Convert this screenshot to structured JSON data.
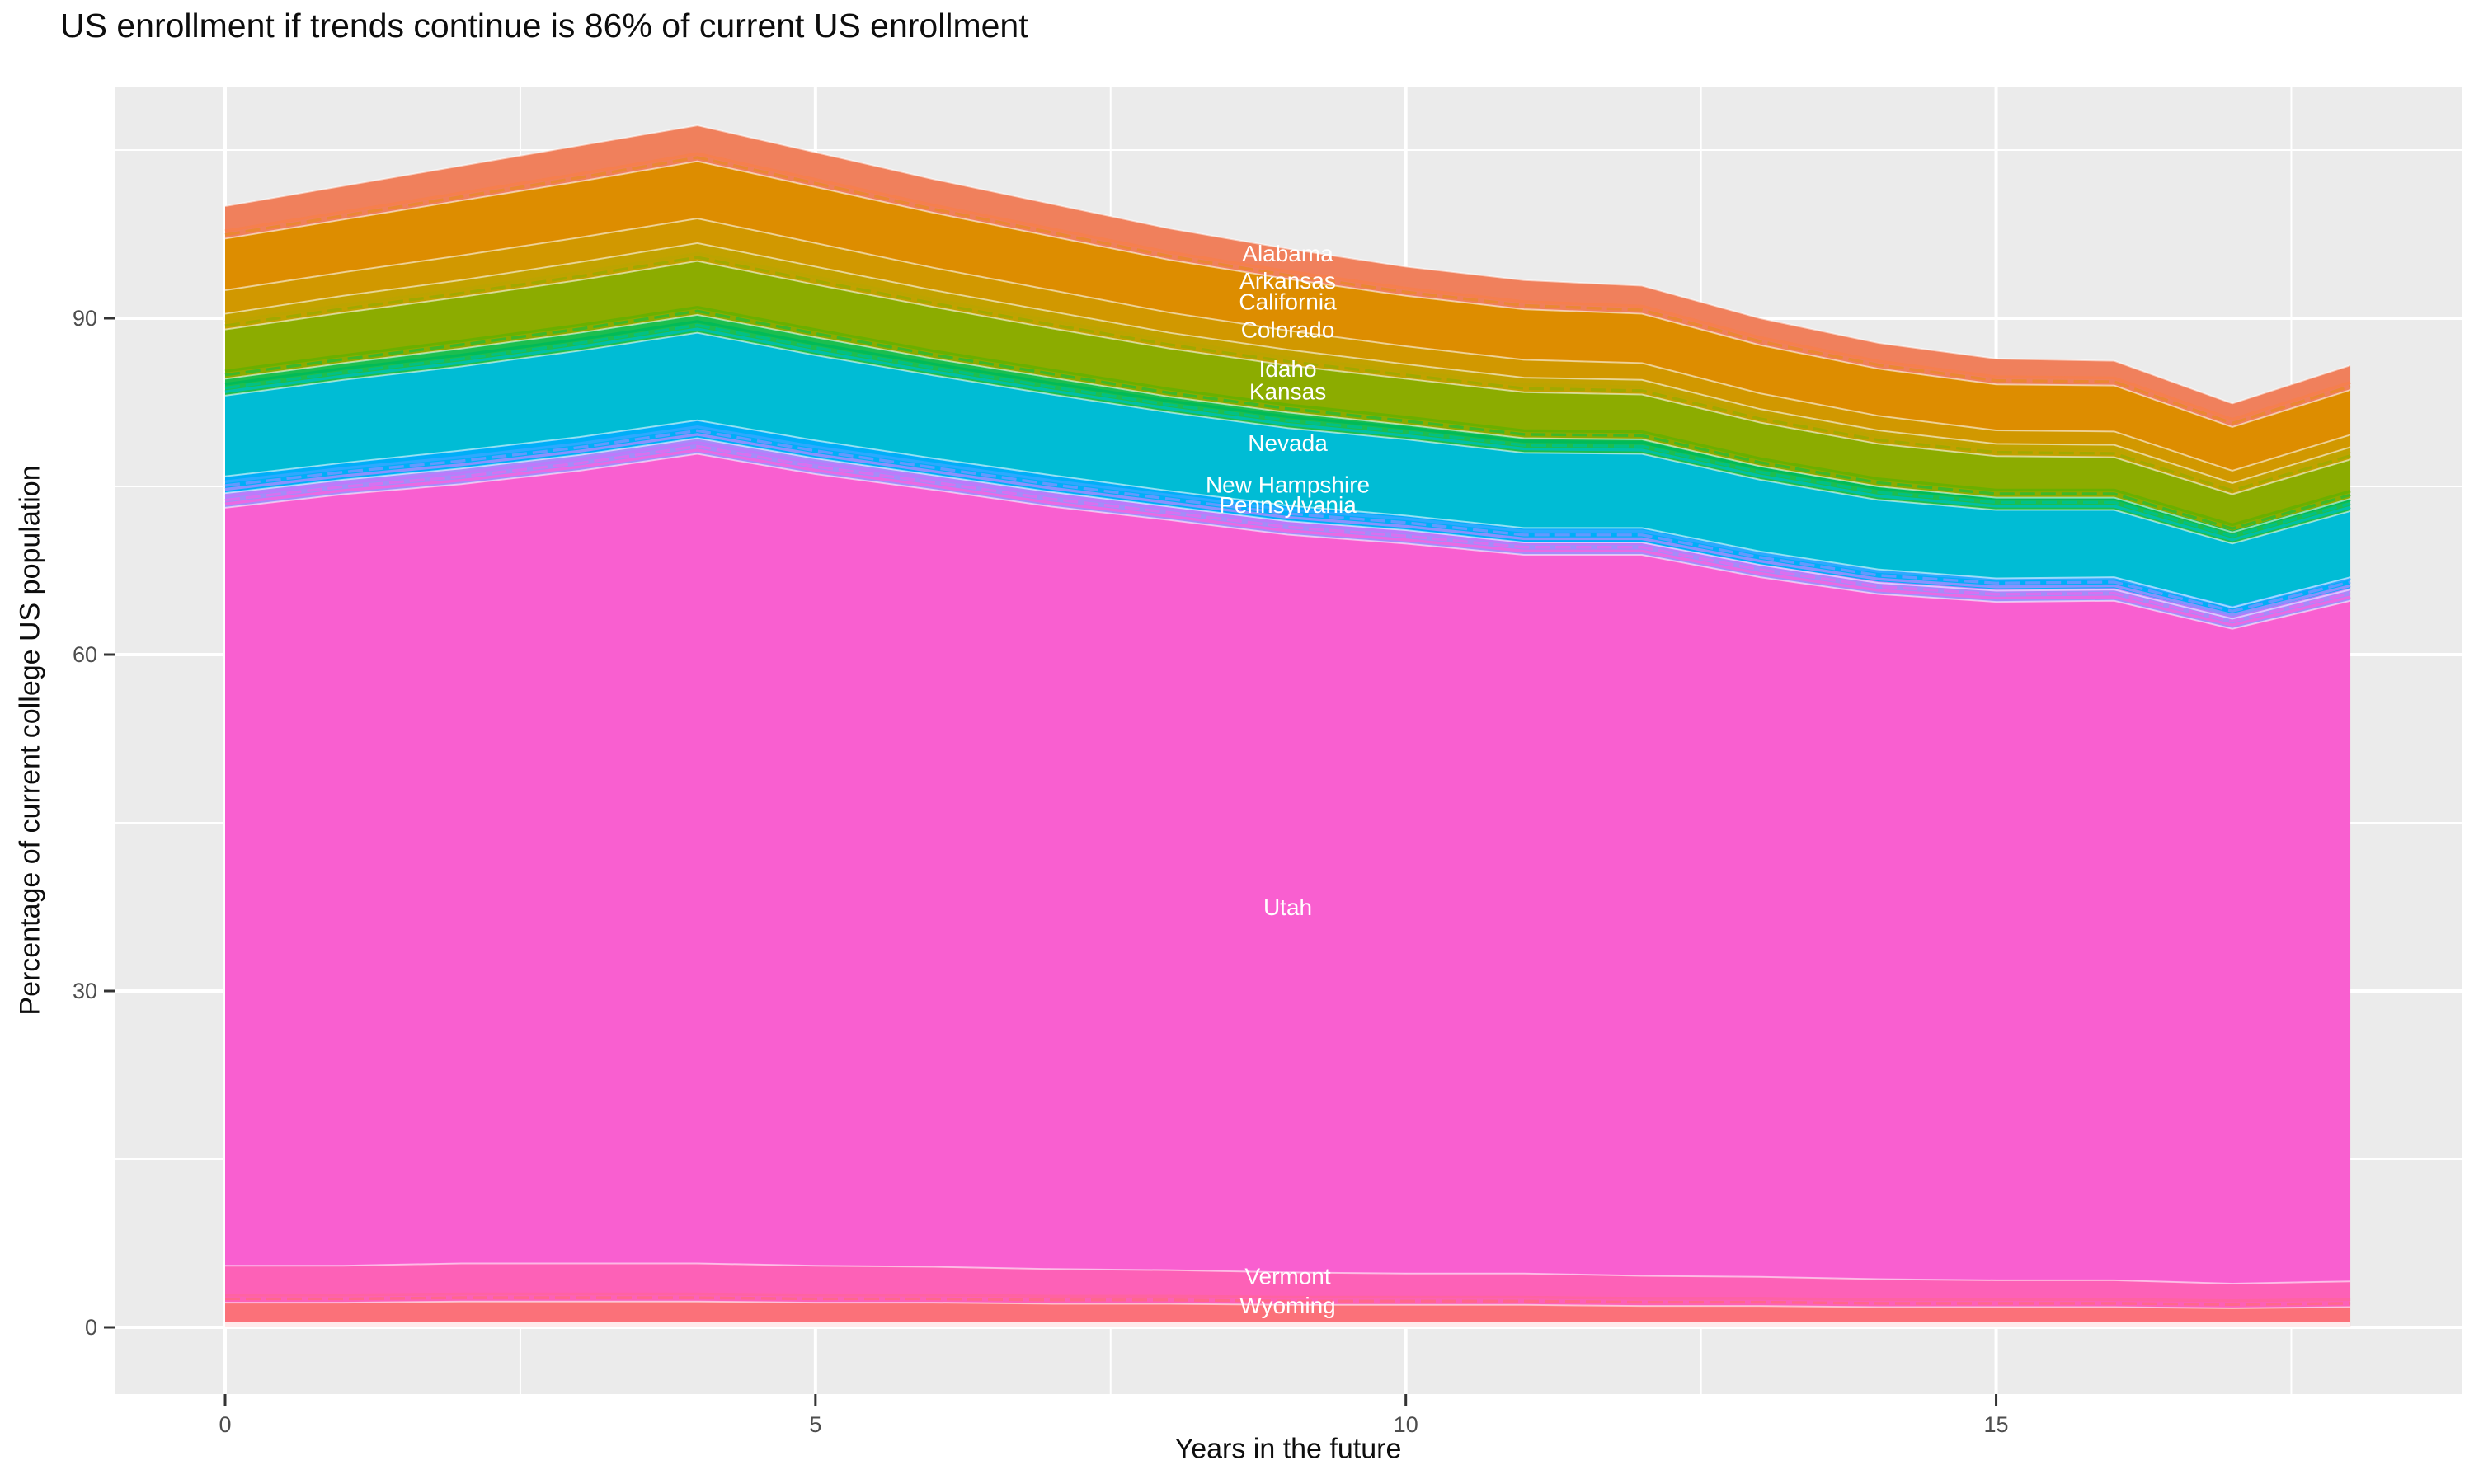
{
  "chart_data": {
    "type": "area",
    "title": "US enrollment if trends continue is 86% of current US enrollment",
    "xlabel": "Years in the future",
    "ylabel": "Percentage of current college US population",
    "panel_bg": "#EBEBEB",
    "grid_color": "#FFFFFF",
    "tick_label_color": "#4D4D4D",
    "tick_mark_color": "#333333",
    "area_label_color": "#FFFFFF",
    "legend": "none",
    "x": [
      0,
      1,
      2,
      3,
      4,
      5,
      6,
      7,
      8,
      9,
      10,
      11,
      12,
      13,
      14,
      15,
      16,
      17,
      18
    ],
    "x_ticks": [
      0,
      5,
      10,
      15
    ],
    "x_minor_ticks": [
      2.5,
      7.5,
      12.5,
      17.5
    ],
    "y_ticks": [
      0,
      30,
      60,
      90
    ],
    "y_minor_ticks": [
      15,
      45,
      75,
      105
    ],
    "xlim": [
      -0.93,
      18.94
    ],
    "ylim": [
      -5.96,
      110.66
    ],
    "series": [
      {
        "name": "Wyoming",
        "color": "#FB7179",
        "stripes_above": [
          "#FF639F",
          "#FF6788"
        ],
        "values": [
          2.2,
          2.2,
          2.3,
          2.3,
          2.3,
          2.2,
          2.2,
          2.1,
          2.1,
          2.0,
          2.0,
          2.0,
          1.9,
          1.9,
          1.8,
          1.8,
          1.8,
          1.7,
          1.8
        ]
      },
      {
        "name": "Vermont",
        "color": "#FD61B7",
        "stripes_above": [],
        "values": [
          3.3,
          3.3,
          3.4,
          3.4,
          3.4,
          3.3,
          3.2,
          3.1,
          3.0,
          2.9,
          2.8,
          2.8,
          2.7,
          2.6,
          2.5,
          2.4,
          2.4,
          2.2,
          2.3
        ]
      },
      {
        "name": "Utah",
        "color": "#F95FD0",
        "stripes_above": [
          "#BE79FB",
          "#DA70F0",
          "#ED68E3"
        ],
        "values": [
          67.6,
          68.8,
          69.5,
          70.7,
          72.2,
          70.6,
          69.3,
          68.0,
          66.9,
          65.8,
          65.1,
          64.1,
          64.3,
          62.4,
          61.1,
          60.5,
          60.6,
          58.4,
          60.7
        ]
      },
      {
        "name": "Pennsylvania",
        "color": "#A58CF9",
        "stripes_above": [
          "#2EA9FF",
          "#6699FF",
          "#9190FD"
        ],
        "values": [
          1.3,
          1.3,
          1.4,
          1.4,
          1.4,
          1.4,
          1.3,
          1.3,
          1.2,
          1.2,
          1.2,
          1.1,
          1.1,
          1.1,
          1.0,
          1.0,
          1.0,
          0.9,
          1.0
        ]
      },
      {
        "name": "New Hampshire",
        "color": "#00AEF8",
        "stripes_above": [],
        "values": [
          1.5,
          1.5,
          1.6,
          1.6,
          1.6,
          1.6,
          1.5,
          1.5,
          1.4,
          1.4,
          1.3,
          1.3,
          1.3,
          1.2,
          1.2,
          1.1,
          1.1,
          1.0,
          1.1
        ]
      },
      {
        "name": "Nevada",
        "color": "#00BCD5",
        "stripes_above": [
          "#00BB59",
          "#00C189",
          "#00C0AC"
        ],
        "values": [
          7.2,
          7.4,
          7.5,
          7.7,
          7.8,
          7.6,
          7.4,
          7.2,
          7.0,
          6.9,
          6.8,
          6.7,
          6.6,
          6.4,
          6.2,
          6.1,
          6.0,
          5.7,
          5.9
        ]
      },
      {
        "name": "Kansas",
        "color": "#1CBE4F",
        "stripes_above": [
          "#68B000",
          "#3BB829"
        ],
        "values": [
          1.5,
          1.5,
          1.6,
          1.6,
          1.6,
          1.6,
          1.5,
          1.5,
          1.4,
          1.4,
          1.3,
          1.3,
          1.3,
          1.2,
          1.2,
          1.1,
          1.1,
          1.0,
          1.1
        ]
      },
      {
        "name": "Idaho",
        "color": "#8CAC00",
        "stripes_above": [
          "#BCA400",
          "#9FAA00"
        ],
        "values": [
          4.4,
          4.5,
          4.6,
          4.7,
          4.8,
          4.7,
          4.6,
          4.4,
          4.3,
          4.2,
          4.1,
          4.1,
          4.0,
          3.9,
          3.8,
          3.7,
          3.6,
          3.4,
          3.5
        ]
      },
      {
        "name": "Colorado",
        "color": "#C2A200",
        "stripes_above": [],
        "values": [
          1.4,
          1.5,
          1.5,
          1.6,
          1.6,
          1.6,
          1.5,
          1.5,
          1.4,
          1.4,
          1.3,
          1.3,
          1.3,
          1.2,
          1.2,
          1.1,
          1.1,
          1.0,
          1.1
        ]
      },
      {
        "name": "California",
        "color": "#D19800",
        "stripes_above": [],
        "values": [
          2.1,
          2.1,
          2.2,
          2.2,
          2.2,
          2.1,
          2.0,
          1.9,
          1.8,
          1.7,
          1.6,
          1.6,
          1.5,
          1.4,
          1.3,
          1.2,
          1.2,
          1.1,
          1.1
        ]
      },
      {
        "name": "Arkansas",
        "color": "#DD8D00",
        "stripes_above": [
          "#F57E4D",
          "#EA8730"
        ],
        "values": [
          4.6,
          4.7,
          4.9,
          5.0,
          5.1,
          5.0,
          4.9,
          4.8,
          4.7,
          4.6,
          4.5,
          4.5,
          4.4,
          4.3,
          4.2,
          4.1,
          4.1,
          3.9,
          4.0
        ]
      },
      {
        "name": "Alabama",
        "color": "#F0805C",
        "stripes_above": [],
        "values": [
          2.9,
          3.0,
          3.1,
          3.2,
          3.2,
          3.1,
          3.0,
          2.9,
          2.8,
          2.7,
          2.6,
          2.6,
          2.5,
          2.4,
          2.3,
          2.3,
          2.2,
          2.1,
          2.2
        ]
      }
    ],
    "area_labels": [
      {
        "text": "Alabama",
        "x": 9,
        "y": 95.8
      },
      {
        "text": "Arkansas",
        "x": 9,
        "y": 93.4
      },
      {
        "text": "California",
        "x": 9,
        "y": 91.5
      },
      {
        "text": "Colorado",
        "x": 9,
        "y": 89.0
      },
      {
        "text": "Idaho",
        "x": 9,
        "y": 85.5
      },
      {
        "text": "Kansas",
        "x": 9,
        "y": 83.5
      },
      {
        "text": "Nevada",
        "x": 9,
        "y": 78.9
      },
      {
        "text": "New Hampshire",
        "x": 9,
        "y": 75.2
      },
      {
        "text": "Pennsylvania",
        "x": 9,
        "y": 73.4
      },
      {
        "text": "Utah",
        "x": 9,
        "y": 37.5
      },
      {
        "text": "Vermont",
        "x": 9,
        "y": 4.6
      },
      {
        "text": "Wyoming",
        "x": 9,
        "y": 2.0
      }
    ]
  }
}
